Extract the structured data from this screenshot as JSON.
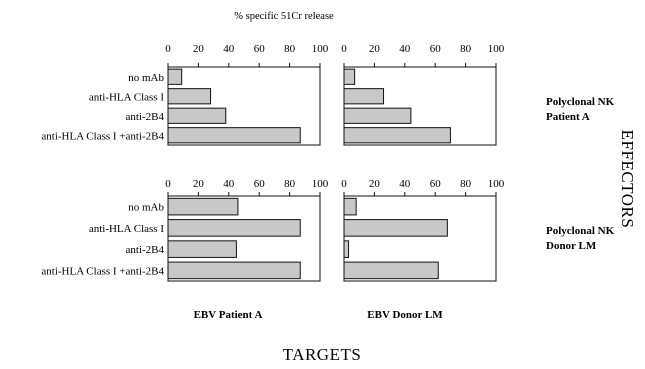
{
  "figure": {
    "top_title": "% specific 51Cr release",
    "effectors_label": "EFFECTORS",
    "targets_label": "TARGETS",
    "row_labels": [
      [
        "Polyclonal NK",
        "Patient A"
      ],
      [
        "Polyclonal NK",
        "Donor LM"
      ]
    ],
    "col_labels": [
      "EBV Patient A",
      "EBV Donor LM"
    ],
    "bar_color": "#c8c8c8",
    "frame_color": "#111111"
  },
  "chart_data": [
    {
      "type": "bar",
      "orientation": "horizontal",
      "effectors": "Polyclonal NK Patient A",
      "targets": "EBV Patient A",
      "categories": [
        "no mAb",
        "anti-HLA Class I",
        "anti-2B4",
        "anti-HLA Class I +anti-2B4"
      ],
      "values": [
        9,
        28,
        38,
        87
      ],
      "xlabel": "% specific 51Cr release",
      "xlim": [
        0,
        100
      ],
      "xticks": [
        0,
        20,
        40,
        60,
        80,
        100
      ]
    },
    {
      "type": "bar",
      "orientation": "horizontal",
      "effectors": "Polyclonal NK Patient A",
      "targets": "EBV Donor LM",
      "categories": [
        "no mAb",
        "anti-HLA Class I",
        "anti-2B4",
        "anti-HLA Class I +anti-2B4"
      ],
      "values": [
        7,
        26,
        44,
        70
      ],
      "xlabel": "% specific 51Cr release",
      "xlim": [
        0,
        100
      ],
      "xticks": [
        0,
        20,
        40,
        60,
        80,
        100
      ]
    },
    {
      "type": "bar",
      "orientation": "horizontal",
      "effectors": "Polyclonal NK Donor LM",
      "targets": "EBV Patient A",
      "categories": [
        "no mAb",
        "anti-HLA Class I",
        "anti-2B4",
        "anti-HLA Class I +anti-2B4"
      ],
      "values": [
        46,
        87,
        45,
        87
      ],
      "xlabel": "",
      "xlim": [
        0,
        100
      ],
      "xticks": [
        0,
        20,
        40,
        60,
        80,
        100
      ]
    },
    {
      "type": "bar",
      "orientation": "horizontal",
      "effectors": "Polyclonal NK Donor LM",
      "targets": "EBV Donor LM",
      "categories": [
        "no mAb",
        "anti-HLA Class I",
        "anti-2B4",
        "anti-HLA Class I +anti-2B4"
      ],
      "values": [
        8,
        68,
        3,
        62
      ],
      "xlabel": "",
      "xlim": [
        0,
        100
      ],
      "xticks": [
        0,
        20,
        40,
        60,
        80,
        100
      ]
    }
  ]
}
